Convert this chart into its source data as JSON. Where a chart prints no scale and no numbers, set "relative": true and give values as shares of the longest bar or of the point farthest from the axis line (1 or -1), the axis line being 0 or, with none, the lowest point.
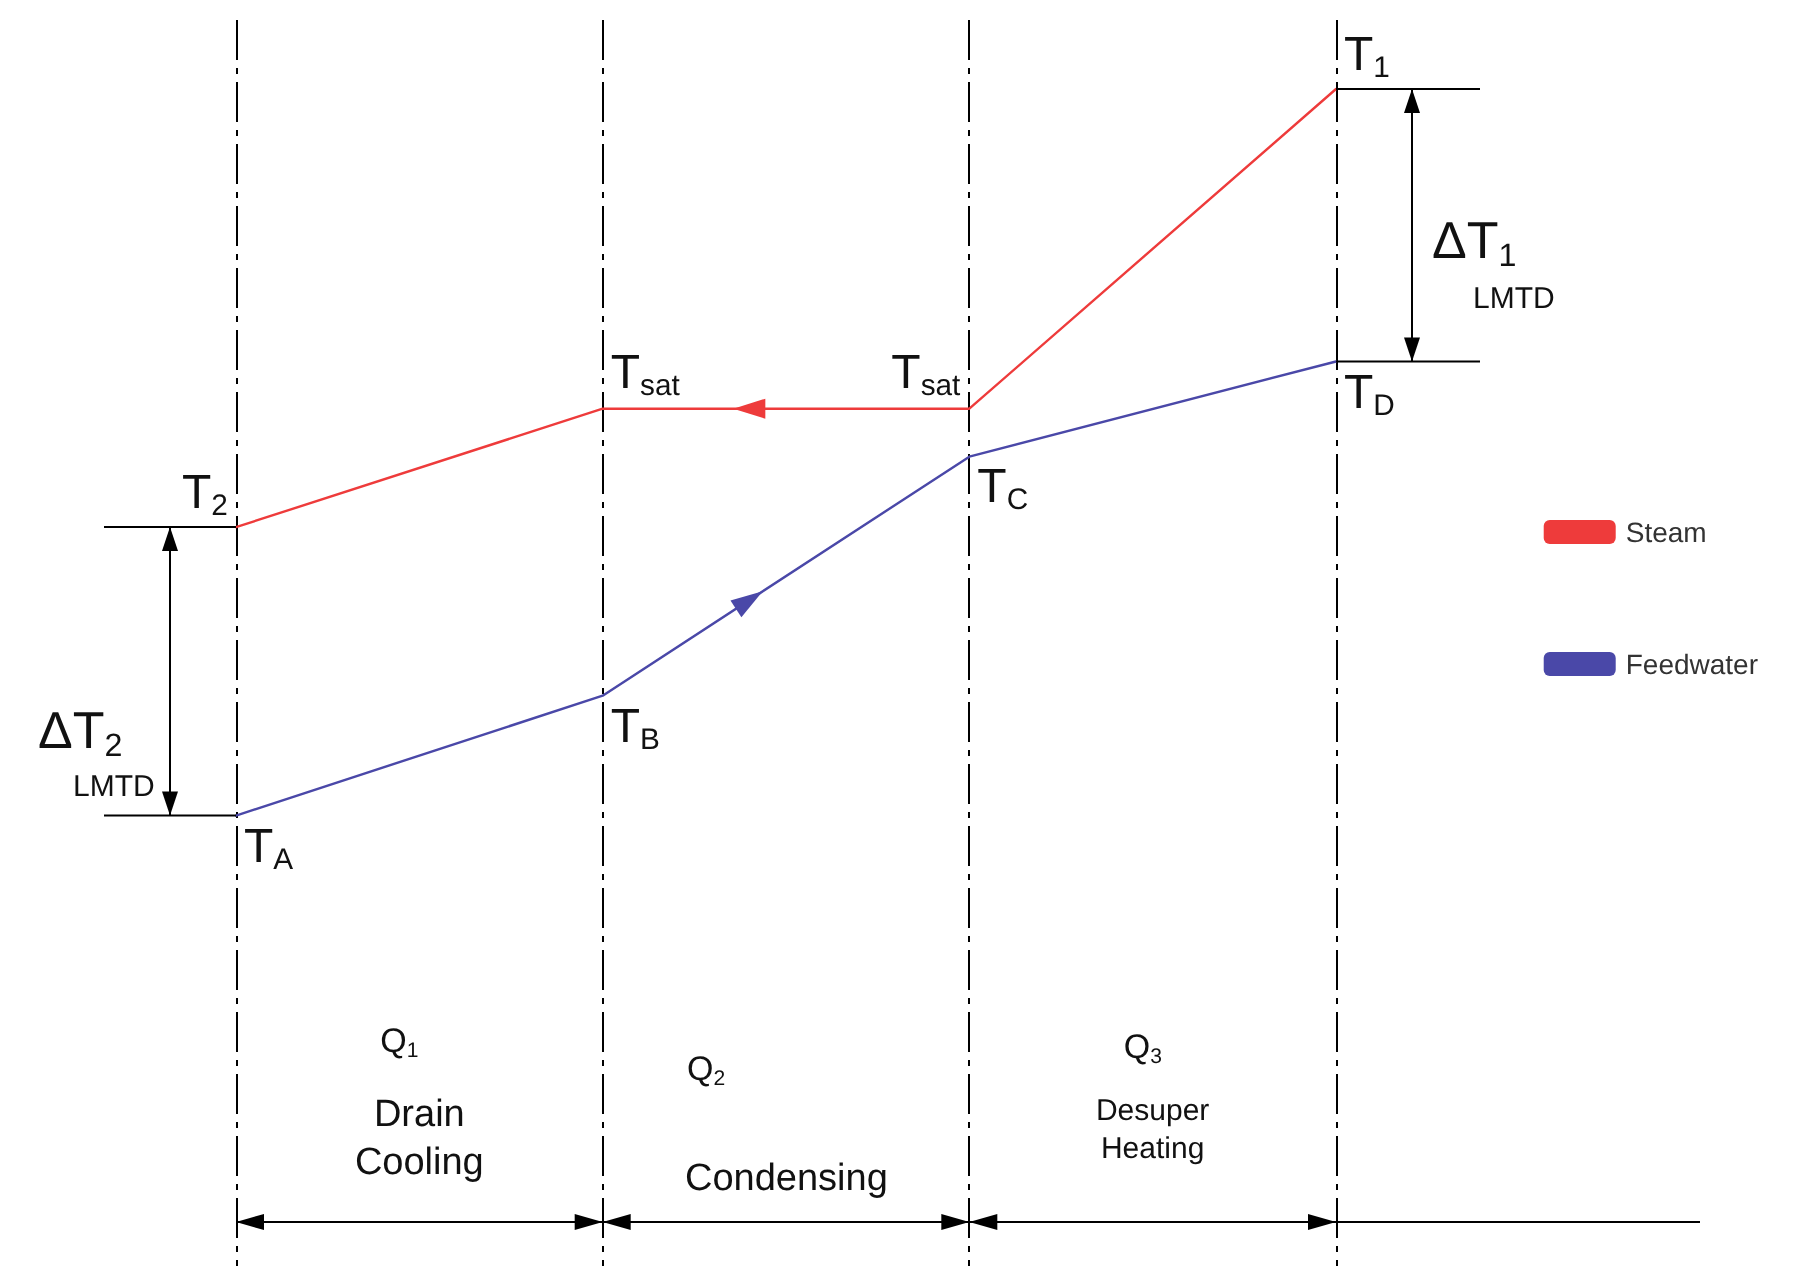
{
  "chart_data": {
    "type": "line",
    "relative": true,
    "grid": "x",
    "legend": "right",
    "marker": "none",
    "line_style": "solid",
    "categories": [
      null,
      null,
      null,
      null
    ],
    "series": [
      {
        "name": "Steam",
        "color": "#ee3b3b",
        "values": [
          0.397,
          0.56,
          0.56,
          1
        ]
      },
      {
        "name": "Feedwater",
        "color": "#4a48a8",
        "values": [
          0,
          0.165,
          0.494,
          0.625
        ]
      }
    ],
    "annotations": [
      "T$_{1}$",
      "T$_{D}$",
      "T$_{sat}$",
      "T$_{B}$",
      "T$_{sat}$",
      "T$_{C}$",
      "T$_{2}$",
      "T$_{A}$",
      "ΔT$_{1}$",
      "LMTD",
      "ΔT$_{2}$",
      "LMTD",
      "Q$_{1}$",
      "Drain Cooling",
      "Q$_{2}$",
      "Condensing",
      "Q$_{3}$",
      "Desuper Heating"
    ]
  }
}
